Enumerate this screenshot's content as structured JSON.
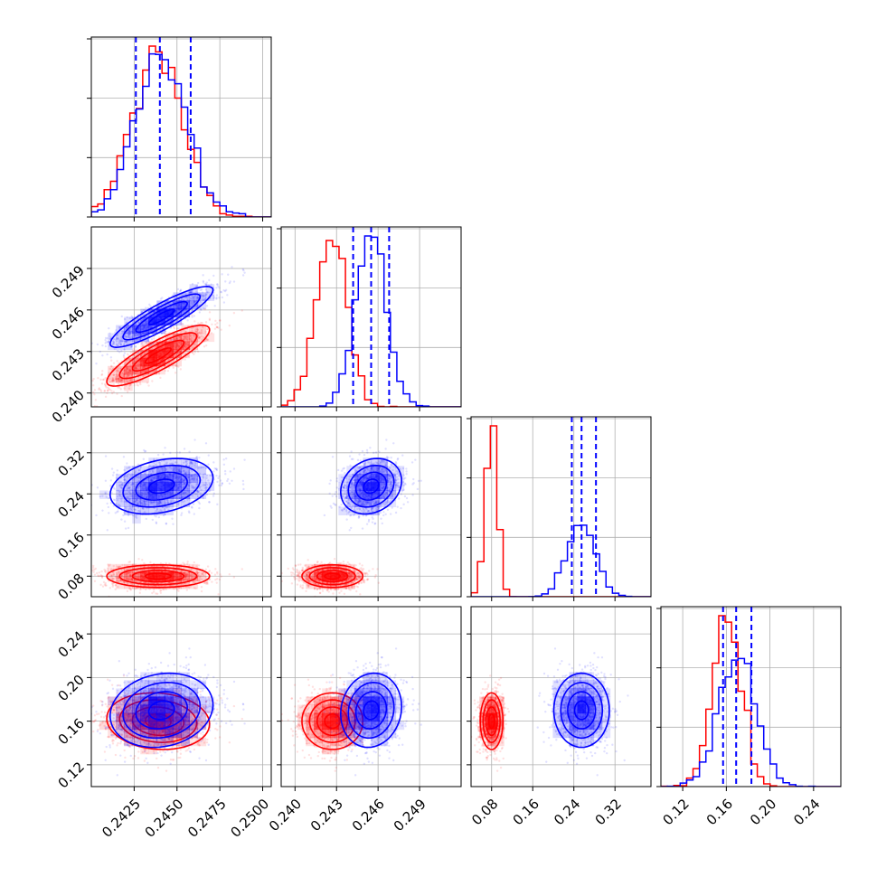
{
  "chart_data": {
    "type": "corner",
    "grid": true,
    "colors": {
      "series_a": "#ff0000",
      "series_b": "#0000ff",
      "quantile_lines": "#0000ff"
    },
    "parameters": [
      {
        "range": [
          0.24,
          0.2505
        ],
        "ticks": [
          0.2425,
          0.245,
          0.2475,
          0.25
        ],
        "tick_labels": [
          "0.2425",
          "0.2450",
          "0.2475",
          "0.2500"
        ],
        "hist_ticks": [
          0.0,
          0.33,
          0.66,
          0.99
        ]
      },
      {
        "range": [
          0.239,
          0.252
        ],
        "ticks": [
          0.24,
          0.243,
          0.246,
          0.249
        ],
        "tick_labels": [
          "0.240",
          "0.243",
          "0.246",
          "0.249"
        ],
        "hist_ticks": [
          0.0,
          0.33,
          0.66,
          0.99
        ]
      },
      {
        "range": [
          0.04,
          0.39
        ],
        "ticks": [
          0.08,
          0.16,
          0.24,
          0.32
        ],
        "tick_labels": [
          "0.08",
          "0.16",
          "0.24",
          "0.32"
        ],
        "hist_ticks": [
          0.0,
          0.33,
          0.66,
          0.99
        ]
      },
      {
        "range": [
          0.1,
          0.265
        ],
        "ticks": [
          0.12,
          0.16,
          0.2,
          0.24
        ],
        "tick_labels": [
          "0.12",
          "0.16",
          "0.20",
          "0.24"
        ],
        "hist_ticks": [
          0.0,
          0.33,
          0.66,
          0.99
        ]
      }
    ],
    "series": [
      {
        "color": "#ff0000",
        "mean": [
          0.2439,
          0.2427,
          0.08,
          0.16
        ],
        "std": [
          0.0015,
          0.0011,
          0.011,
          0.013
        ],
        "corr": [
          [
            1,
            0.85,
            0.0,
            -0.1
          ],
          [
            0.85,
            1,
            0.0,
            0.0
          ],
          [
            0.0,
            0.0,
            1,
            0.0
          ],
          [
            -0.1,
            0.0,
            0.0,
            1
          ]
        ]
      },
      {
        "color": "#0000ff",
        "mean": [
          0.2441,
          0.2455,
          0.255,
          0.17
        ],
        "std": [
          0.0015,
          0.0011,
          0.027,
          0.017
        ],
        "corr": [
          [
            1,
            0.88,
            0.3,
            0.15
          ],
          [
            0.88,
            1,
            0.2,
            0.1
          ],
          [
            0.3,
            0.2,
            1,
            0.0
          ],
          [
            0.15,
            0.1,
            0.0,
            1
          ]
        ]
      }
    ],
    "quantiles": [
      [
        0.2426,
        0.244,
        0.2458
      ],
      [
        0.2442,
        0.2455,
        0.2468
      ],
      [
        0.236,
        0.255,
        0.283
      ],
      [
        0.157,
        0.169,
        0.183
      ]
    ]
  }
}
